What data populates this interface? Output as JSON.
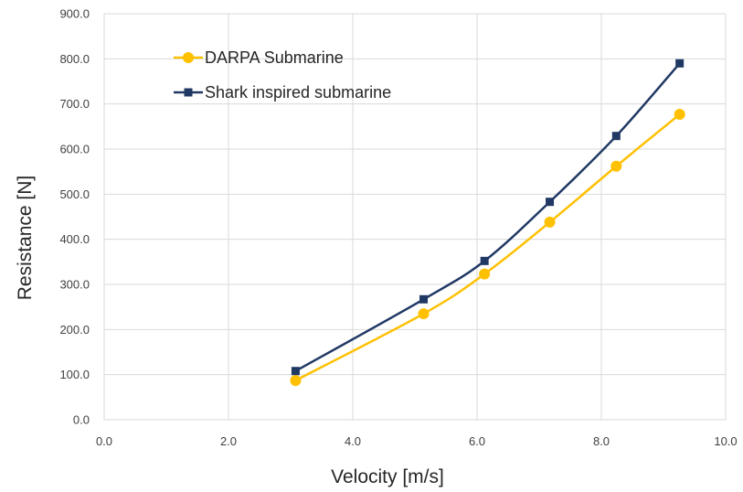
{
  "chart_data": {
    "type": "line",
    "xlabel": "Velocity [m/s]",
    "ylabel": "Resistance [N]",
    "xlim": [
      0,
      10
    ],
    "ylim": [
      0,
      900
    ],
    "x_ticks": [
      "0.0",
      "2.0",
      "4.0",
      "6.0",
      "8.0",
      "10.0"
    ],
    "y_ticks": [
      "0.0",
      "100.0",
      "200.0",
      "300.0",
      "400.0",
      "500.0",
      "600.0",
      "700.0",
      "800.0",
      "900.0"
    ],
    "grid": true,
    "legend_position": "top-left",
    "series": [
      {
        "name": "DARPA Submarine",
        "color": "#FFC000",
        "marker": "circle",
        "x": [
          3.08,
          5.14,
          6.12,
          7.17,
          8.24,
          9.26
        ],
        "y": [
          87,
          235,
          323,
          438,
          562,
          677
        ]
      },
      {
        "name": "Shark inspired submarine",
        "color": "#203864",
        "marker": "square",
        "x": [
          3.08,
          5.14,
          6.12,
          7.17,
          8.24,
          9.26
        ],
        "y": [
          108,
          267,
          352,
          483,
          629,
          790
        ]
      }
    ]
  }
}
